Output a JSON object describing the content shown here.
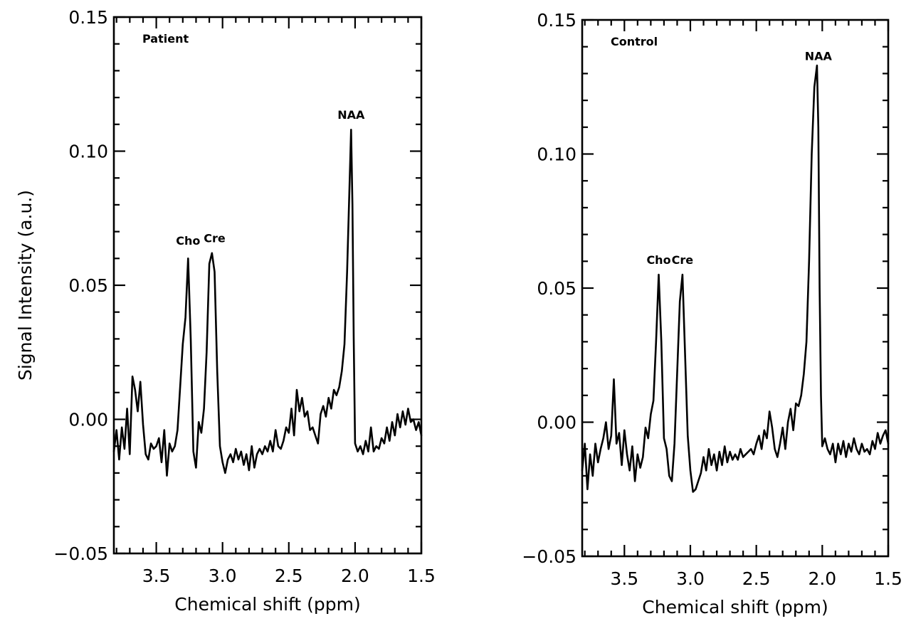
{
  "chart_data": [
    {
      "type": "line",
      "panel_label": "Patient",
      "xlabel": "Chemical shift (ppm)",
      "ylabel": "Signal Intensity (a.u.)",
      "xlim": [
        3.82,
        1.5
      ],
      "ylim": [
        -0.05,
        0.15
      ],
      "x_reversed": true,
      "x_ticks": [
        "3.5",
        "3.0",
        "2.5",
        "2.0",
        "1.5"
      ],
      "y_ticks": [
        "0.15",
        "0.10",
        "0.05",
        "0.00",
        "−0.05"
      ],
      "annotations": [
        {
          "text": "Cho",
          "x": 3.26,
          "y": 0.064
        },
        {
          "text": "Cre",
          "x": 3.06,
          "y": 0.065
        },
        {
          "text": "NAA",
          "x": 2.03,
          "y": 0.111
        }
      ],
      "series": [
        {
          "x": [
            3.82,
            3.8,
            3.78,
            3.76,
            3.74,
            3.72,
            3.7,
            3.68,
            3.66,
            3.64,
            3.62,
            3.6,
            3.58,
            3.56,
            3.54,
            3.52,
            3.5,
            3.48,
            3.46,
            3.44,
            3.42,
            3.4,
            3.38,
            3.36,
            3.34,
            3.32,
            3.3,
            3.28,
            3.26,
            3.24,
            3.22,
            3.2,
            3.18,
            3.16,
            3.14,
            3.12,
            3.1,
            3.08,
            3.06,
            3.04,
            3.02,
            3.0,
            2.98,
            2.96,
            2.94,
            2.92,
            2.9,
            2.88,
            2.86,
            2.84,
            2.82,
            2.8,
            2.78,
            2.76,
            2.74,
            2.72,
            2.7,
            2.68,
            2.66,
            2.64,
            2.62,
            2.6,
            2.58,
            2.56,
            2.54,
            2.52,
            2.5,
            2.48,
            2.46,
            2.44,
            2.42,
            2.4,
            2.38,
            2.36,
            2.34,
            2.32,
            2.3,
            2.28,
            2.26,
            2.24,
            2.22,
            2.2,
            2.18,
            2.16,
            2.14,
            2.12,
            2.1,
            2.08,
            2.06,
            2.04,
            2.03,
            2.02,
            2.01,
            2.0,
            1.98,
            1.96,
            1.94,
            1.92,
            1.9,
            1.88,
            1.86,
            1.84,
            1.82,
            1.8,
            1.78,
            1.76,
            1.74,
            1.72,
            1.7,
            1.68,
            1.66,
            1.64,
            1.62,
            1.6,
            1.58,
            1.56,
            1.54,
            1.52,
            1.5
          ],
          "y": [
            -0.012,
            -0.004,
            -0.015,
            -0.003,
            -0.011,
            0.004,
            -0.013,
            0.016,
            0.011,
            0.003,
            0.014,
            -0.002,
            -0.013,
            -0.015,
            -0.009,
            -0.011,
            -0.01,
            -0.007,
            -0.016,
            -0.004,
            -0.021,
            -0.009,
            -0.012,
            -0.01,
            -0.004,
            0.012,
            0.028,
            0.038,
            0.06,
            0.03,
            -0.012,
            -0.018,
            -0.001,
            -0.005,
            0.004,
            0.025,
            0.058,
            0.062,
            0.055,
            0.018,
            -0.01,
            -0.016,
            -0.02,
            -0.015,
            -0.013,
            -0.016,
            -0.011,
            -0.015,
            -0.012,
            -0.017,
            -0.013,
            -0.019,
            -0.01,
            -0.018,
            -0.013,
            -0.011,
            -0.013,
            -0.01,
            -0.012,
            -0.008,
            -0.012,
            -0.004,
            -0.01,
            -0.011,
            -0.008,
            -0.003,
            -0.005,
            0.004,
            -0.006,
            0.011,
            0.003,
            0.008,
            0.001,
            0.003,
            -0.004,
            -0.003,
            -0.006,
            -0.009,
            0.002,
            0.005,
            0.001,
            0.008,
            0.004,
            0.011,
            0.009,
            0.012,
            0.018,
            0.028,
            0.055,
            0.09,
            0.108,
            0.08,
            0.03,
            -0.009,
            -0.012,
            -0.01,
            -0.013,
            -0.008,
            -0.012,
            -0.003,
            -0.012,
            -0.01,
            -0.011,
            -0.007,
            -0.009,
            -0.003,
            -0.008,
            -0.001,
            -0.006,
            0.002,
            -0.003,
            0.003,
            -0.002,
            0.004,
            -0.001,
            0.0,
            -0.004,
            -0.001,
            -0.006
          ]
        }
      ]
    },
    {
      "type": "line",
      "panel_label": "Control",
      "xlabel": "Chemical shift (ppm)",
      "ylabel": "",
      "xlim": [
        3.82,
        1.5
      ],
      "ylim": [
        -0.05,
        0.15
      ],
      "x_reversed": true,
      "x_ticks": [
        "3.5",
        "3.0",
        "2.5",
        "2.0",
        "1.5"
      ],
      "y_ticks": [
        "0.15",
        "0.10",
        "0.05",
        "0.00",
        "−0.05"
      ],
      "annotations": [
        {
          "text": "Cho",
          "x": 3.24,
          "y": 0.058
        },
        {
          "text": "Cre",
          "x": 3.06,
          "y": 0.058
        },
        {
          "text": "NAA",
          "x": 2.03,
          "y": 0.134
        }
      ],
      "series": [
        {
          "x": [
            3.82,
            3.8,
            3.78,
            3.76,
            3.74,
            3.72,
            3.7,
            3.68,
            3.66,
            3.64,
            3.62,
            3.6,
            3.58,
            3.56,
            3.54,
            3.52,
            3.5,
            3.48,
            3.46,
            3.44,
            3.42,
            3.4,
            3.38,
            3.36,
            3.34,
            3.32,
            3.3,
            3.28,
            3.26,
            3.24,
            3.22,
            3.2,
            3.18,
            3.16,
            3.14,
            3.12,
            3.1,
            3.08,
            3.06,
            3.04,
            3.02,
            3.0,
            2.98,
            2.96,
            2.94,
            2.92,
            2.9,
            2.88,
            2.86,
            2.84,
            2.82,
            2.8,
            2.78,
            2.76,
            2.74,
            2.72,
            2.7,
            2.68,
            2.66,
            2.64,
            2.62,
            2.6,
            2.58,
            2.56,
            2.54,
            2.52,
            2.5,
            2.48,
            2.46,
            2.44,
            2.42,
            2.4,
            2.38,
            2.36,
            2.34,
            2.32,
            2.3,
            2.28,
            2.26,
            2.24,
            2.22,
            2.2,
            2.18,
            2.16,
            2.14,
            2.12,
            2.1,
            2.08,
            2.06,
            2.04,
            2.03,
            2.02,
            2.01,
            2.0,
            1.98,
            1.96,
            1.94,
            1.92,
            1.9,
            1.88,
            1.86,
            1.84,
            1.82,
            1.8,
            1.78,
            1.76,
            1.74,
            1.72,
            1.7,
            1.68,
            1.66,
            1.64,
            1.62,
            1.6,
            1.58,
            1.56,
            1.54,
            1.52,
            1.5
          ],
          "y": [
            -0.018,
            -0.008,
            -0.025,
            -0.012,
            -0.02,
            -0.008,
            -0.015,
            -0.01,
            -0.006,
            0.0,
            -0.01,
            -0.005,
            0.016,
            -0.008,
            -0.004,
            -0.016,
            -0.003,
            -0.012,
            -0.018,
            -0.009,
            -0.022,
            -0.012,
            -0.017,
            -0.013,
            -0.002,
            -0.006,
            0.003,
            0.008,
            0.03,
            0.055,
            0.03,
            -0.006,
            -0.01,
            -0.02,
            -0.022,
            -0.008,
            0.018,
            0.045,
            0.055,
            0.025,
            -0.005,
            -0.018,
            -0.026,
            -0.025,
            -0.022,
            -0.019,
            -0.013,
            -0.018,
            -0.01,
            -0.016,
            -0.012,
            -0.018,
            -0.011,
            -0.016,
            -0.009,
            -0.015,
            -0.011,
            -0.014,
            -0.012,
            -0.014,
            -0.01,
            -0.013,
            -0.012,
            -0.011,
            -0.01,
            -0.012,
            -0.008,
            -0.005,
            -0.01,
            -0.003,
            -0.006,
            0.004,
            -0.002,
            -0.01,
            -0.013,
            -0.008,
            -0.002,
            -0.01,
            0.0,
            0.005,
            -0.003,
            0.007,
            0.006,
            0.01,
            0.018,
            0.03,
            0.06,
            0.1,
            0.125,
            0.133,
            0.11,
            0.05,
            0.01,
            -0.009,
            -0.006,
            -0.01,
            -0.012,
            -0.008,
            -0.015,
            -0.008,
            -0.012,
            -0.007,
            -0.013,
            -0.008,
            -0.011,
            -0.006,
            -0.01,
            -0.012,
            -0.008,
            -0.011,
            -0.01,
            -0.012,
            -0.007,
            -0.01,
            -0.004,
            -0.008,
            -0.005,
            -0.003,
            -0.008
          ]
        }
      ]
    }
  ]
}
